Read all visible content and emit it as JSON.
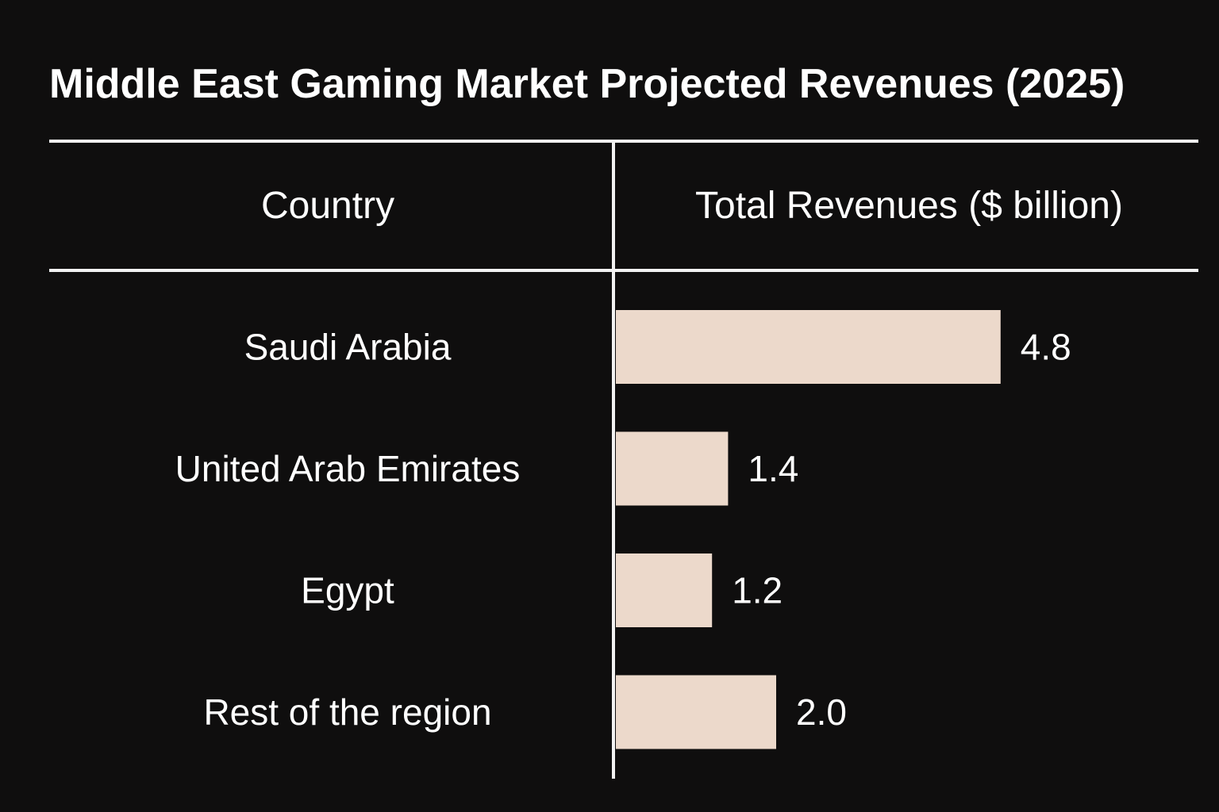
{
  "table": {
    "country_header": "Country",
    "revenue_header": "Total Revenues ($ billion)"
  },
  "colors": {
    "background": "#0f0e0e",
    "bar": "#ecd9cb",
    "text": "#ffffff",
    "rules": "#f2f2f2"
  },
  "chart_data": {
    "type": "bar",
    "orientation": "horizontal",
    "title": "Middle East Gaming Market Projected Revenues (2025)",
    "categories": [
      "Saudi Arabia",
      "United Arab Emirates",
      "Egypt",
      "Rest of the region"
    ],
    "values": [
      4.8,
      1.4,
      1.2,
      2.0
    ],
    "value_labels": [
      "4.8",
      "1.4",
      "1.2",
      "2.0"
    ],
    "xlabel": "Total Revenues ($ billion)",
    "ylabel": "Country"
  }
}
